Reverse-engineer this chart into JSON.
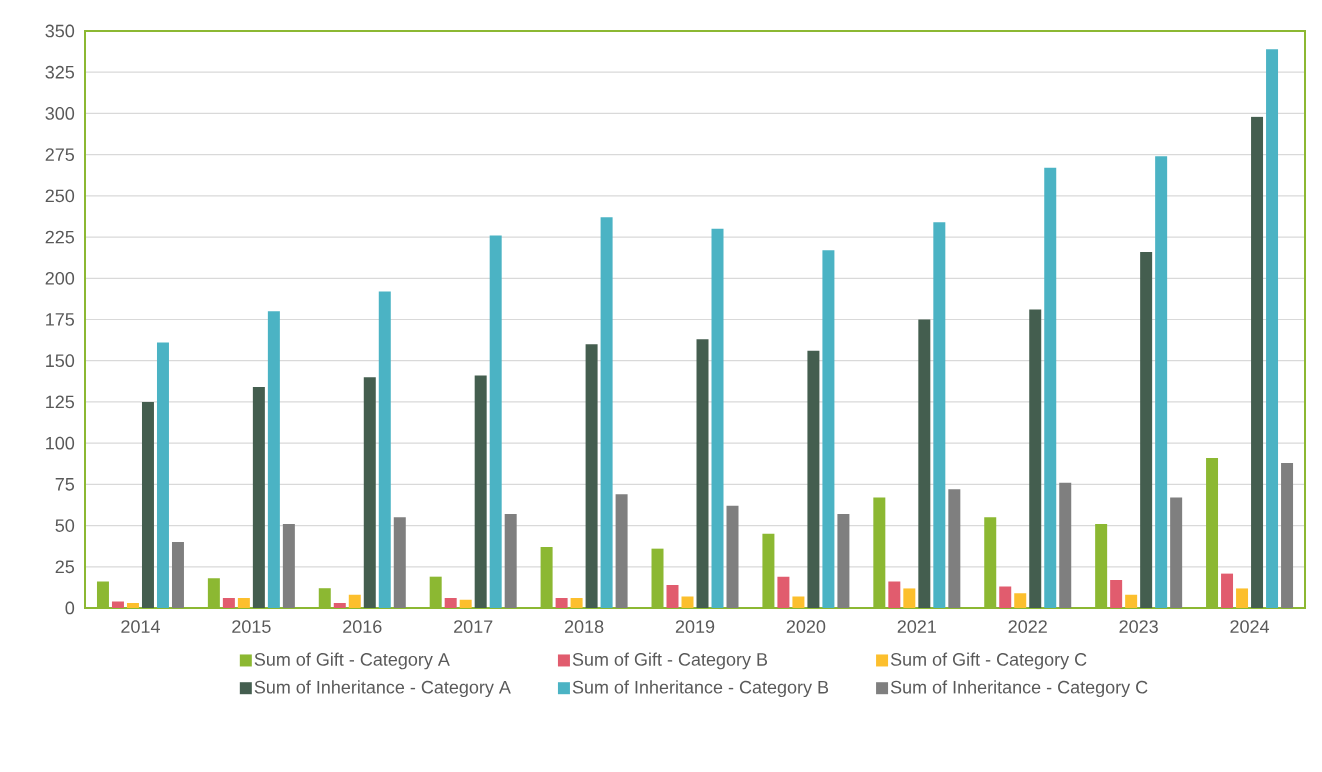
{
  "chart_data": {
    "type": "bar",
    "categories": [
      "2014",
      "2015",
      "2016",
      "2017",
      "2018",
      "2019",
      "2020",
      "2021",
      "2022",
      "2023",
      "2024"
    ],
    "series": [
      {
        "name": "Sum of Gift - Category A",
        "color": "#8cb832",
        "values": [
          16,
          18,
          12,
          19,
          37,
          36,
          45,
          67,
          55,
          51,
          91
        ]
      },
      {
        "name": "Sum of Gift - Category B",
        "color": "#e15c6e",
        "values": [
          4,
          6,
          3,
          6,
          6,
          14,
          19,
          16,
          13,
          17,
          21
        ]
      },
      {
        "name": "Sum of Gift - Category C",
        "color": "#fcbf2d",
        "values": [
          3,
          6,
          8,
          5,
          6,
          7,
          7,
          12,
          9,
          8,
          12
        ]
      },
      {
        "name": "Sum of Inheritance - Category A",
        "color": "#445e4f",
        "values": [
          125,
          134,
          140,
          141,
          160,
          163,
          156,
          175,
          181,
          216,
          298
        ]
      },
      {
        "name": "Sum of Inheritance - Category B",
        "color": "#4bb3c4",
        "values": [
          161,
          180,
          192,
          226,
          237,
          230,
          217,
          234,
          267,
          274,
          339
        ]
      },
      {
        "name": "Sum of Inheritance - Category C",
        "color": "#7f7f7f",
        "values": [
          40,
          51,
          55,
          57,
          69,
          62,
          57,
          72,
          76,
          67,
          88
        ]
      }
    ],
    "ylim": [
      0,
      350
    ],
    "yticks": [
      0,
      25,
      50,
      75,
      100,
      125,
      150,
      175,
      200,
      225,
      250,
      275,
      300,
      325,
      350
    ],
    "grid": "y",
    "legend": "bottom"
  }
}
